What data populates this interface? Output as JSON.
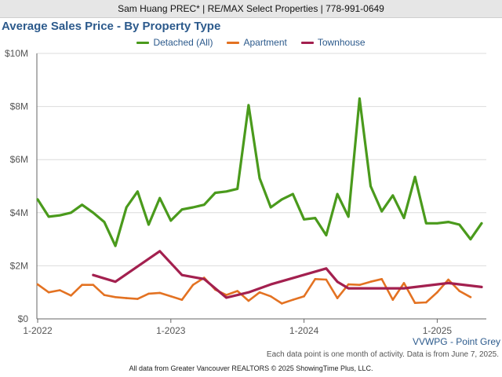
{
  "header": {
    "text": "Sam Huang PREC* | RE/MAX Select Properties | 778-991-0649"
  },
  "chart_data": {
    "type": "line",
    "title": "Average Sales Price - By Property Type",
    "xlabel": "",
    "ylabel": "",
    "ylim": [
      0,
      10
    ],
    "yticks": [
      "$0",
      "$2M",
      "$4M",
      "$6M",
      "$8M",
      "$10M"
    ],
    "xticks": [
      {
        "label": "1-2022",
        "month": 0
      },
      {
        "label": "1-2023",
        "month": 12
      },
      {
        "label": "1-2024",
        "month": 24
      },
      {
        "label": "1-2025",
        "month": 36
      }
    ],
    "grid": true,
    "legend": "top-center",
    "series": [
      {
        "name": "Detached (All)",
        "color": "#4a9a1c",
        "points": [
          [
            0,
            4.5
          ],
          [
            1,
            3.85
          ],
          [
            2,
            3.9
          ],
          [
            3,
            4.0
          ],
          [
            4,
            4.3
          ],
          [
            5,
            4.0
          ],
          [
            6,
            3.65
          ],
          [
            7,
            2.75
          ],
          [
            8,
            4.2
          ],
          [
            9,
            4.8
          ],
          [
            10,
            3.55
          ],
          [
            11,
            4.55
          ],
          [
            12,
            3.7
          ],
          [
            13,
            4.12
          ],
          [
            14,
            4.2
          ],
          [
            15,
            4.3
          ],
          [
            16,
            4.75
          ],
          [
            17,
            4.8
          ],
          [
            18,
            4.9
          ],
          [
            19,
            8.05
          ],
          [
            20,
            5.3
          ],
          [
            21,
            4.2
          ],
          [
            22,
            4.5
          ],
          [
            23,
            4.7
          ],
          [
            24,
            3.75
          ],
          [
            25,
            3.8
          ],
          [
            26,
            3.15
          ],
          [
            27,
            4.7
          ],
          [
            28,
            3.85
          ],
          [
            29,
            8.3
          ],
          [
            30,
            5.0
          ],
          [
            31,
            4.05
          ],
          [
            32,
            4.65
          ],
          [
            33,
            3.8
          ],
          [
            34,
            5.35
          ],
          [
            35,
            3.6
          ],
          [
            36,
            3.6
          ],
          [
            37,
            3.65
          ],
          [
            38,
            3.55
          ],
          [
            39,
            3.0
          ],
          [
            40,
            3.6
          ]
        ]
      },
      {
        "name": "Apartment",
        "color": "#e37222",
        "points": [
          [
            0,
            1.3
          ],
          [
            1,
            1.0
          ],
          [
            2,
            1.08
          ],
          [
            3,
            0.88
          ],
          [
            4,
            1.28
          ],
          [
            5,
            1.28
          ],
          [
            6,
            0.9
          ],
          [
            7,
            0.82
          ],
          [
            8,
            0.78
          ],
          [
            9,
            0.75
          ],
          [
            10,
            0.95
          ],
          [
            11,
            0.98
          ],
          [
            12,
            0.85
          ],
          [
            13,
            0.72
          ],
          [
            14,
            1.28
          ],
          [
            15,
            1.55
          ],
          [
            16,
            1.1
          ],
          [
            17,
            0.9
          ],
          [
            18,
            1.05
          ],
          [
            19,
            0.68
          ],
          [
            20,
            1.0
          ],
          [
            21,
            0.85
          ],
          [
            22,
            0.58
          ],
          [
            23,
            0.72
          ],
          [
            24,
            0.85
          ],
          [
            25,
            1.5
          ],
          [
            26,
            1.48
          ],
          [
            27,
            0.78
          ],
          [
            28,
            1.3
          ],
          [
            29,
            1.28
          ],
          [
            30,
            1.4
          ],
          [
            31,
            1.5
          ],
          [
            32,
            0.72
          ],
          [
            33,
            1.35
          ],
          [
            34,
            0.6
          ],
          [
            35,
            0.62
          ],
          [
            36,
            1.0
          ],
          [
            37,
            1.48
          ],
          [
            38,
            1.05
          ],
          [
            39,
            0.82
          ]
        ]
      },
      {
        "name": "Townhouse",
        "color": "#a3204f",
        "points": [
          [
            5,
            1.65
          ],
          [
            7,
            1.4
          ],
          [
            11,
            2.55
          ],
          [
            13,
            1.65
          ],
          [
            15,
            1.5
          ],
          [
            17,
            0.8
          ],
          [
            19,
            1.0
          ],
          [
            21,
            1.3
          ],
          [
            26,
            1.9
          ],
          [
            27,
            1.4
          ],
          [
            28,
            1.15
          ],
          [
            33,
            1.15
          ],
          [
            37,
            1.35
          ],
          [
            40,
            1.2
          ]
        ]
      }
    ]
  },
  "labels": {
    "point_group": "VVWPG - Point Grey",
    "note": "Each data point is one month of activity. Data is from June 7, 2025.",
    "footer": "All data from Greater Vancouver REALTORS © 2025 ShowingTime Plus, LLC."
  }
}
